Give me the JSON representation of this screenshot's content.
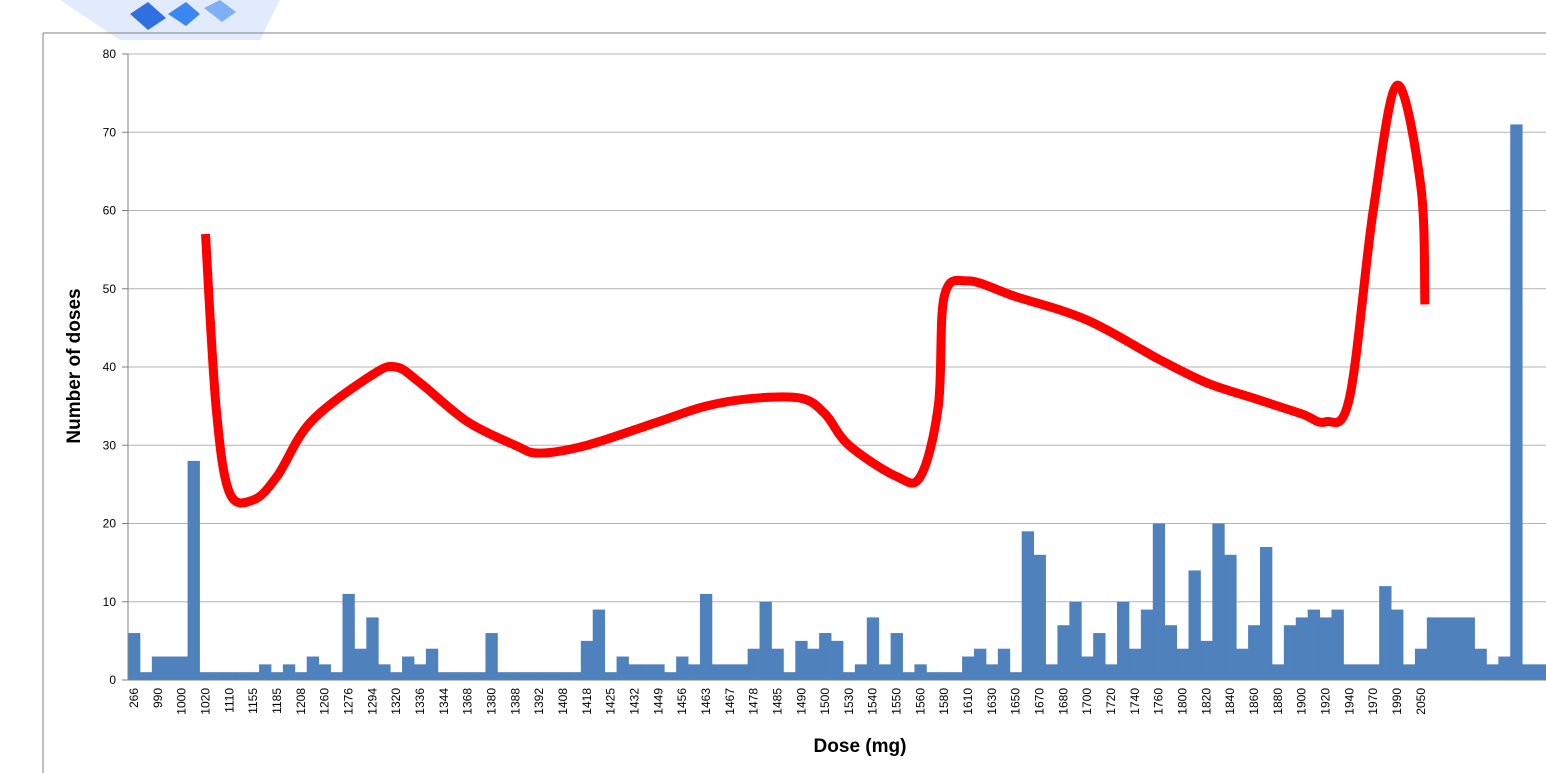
{
  "chart_data": {
    "type": "bar",
    "title": "",
    "xlabel": "Dose (mg)",
    "ylabel": "Number of doses",
    "ylim": [
      0,
      80
    ],
    "y_ticks": [
      0,
      10,
      20,
      30,
      40,
      50,
      60,
      70,
      80
    ],
    "grid": true,
    "legend": "none",
    "colors": {
      "bars": "#4F81BD",
      "trend": "#FF0000",
      "grid": "#B4B4B4",
      "watermark": "#2F6FE0"
    },
    "x_tick_labels": [
      "266",
      "990",
      "1000",
      "1020",
      "1110",
      "1155",
      "1185",
      "1208",
      "1260",
      "1276",
      "1294",
      "1320",
      "1336",
      "1344",
      "1368",
      "1380",
      "1388",
      "1392",
      "1408",
      "1418",
      "1425",
      "1432",
      "1449",
      "1456",
      "1463",
      "1467",
      "1478",
      "1485",
      "1490",
      "1500",
      "1530",
      "1540",
      "1550",
      "1560",
      "1580",
      "1610",
      "1630",
      "1650",
      "1670",
      "1680",
      "1700",
      "1720",
      "1740",
      "1760",
      "1800",
      "1820",
      "1840",
      "1860",
      "1880",
      "1900",
      "1920",
      "1940",
      "1970",
      "1990",
      "2050"
    ],
    "values": [
      6,
      1,
      3,
      3,
      3,
      28,
      1,
      1,
      1,
      1,
      1,
      2,
      1,
      2,
      1,
      3,
      2,
      1,
      11,
      4,
      8,
      2,
      1,
      3,
      2,
      4,
      1,
      1,
      1,
      1,
      6,
      1,
      1,
      1,
      1,
      1,
      1,
      1,
      5,
      9,
      1,
      3,
      2,
      2,
      2,
      1,
      3,
      2,
      11,
      2,
      2,
      2,
      4,
      10,
      4,
      1,
      5,
      4,
      6,
      5,
      1,
      2,
      8,
      2,
      6,
      1,
      2,
      1,
      1,
      1,
      3,
      4,
      2,
      4,
      1,
      19,
      16,
      2,
      7,
      10,
      3,
      6,
      2,
      10,
      4,
      9,
      20,
      7,
      4,
      14,
      5,
      20,
      16,
      4,
      7,
      17,
      2,
      7,
      8,
      9,
      8,
      9,
      2,
      2,
      2,
      12,
      9,
      2,
      4,
      8,
      8,
      8,
      8,
      4,
      2,
      3,
      71,
      2,
      2
    ],
    "trend_line": {
      "type": "smoothed",
      "points": [
        [
          1020,
          57
        ],
        [
          1060,
          35
        ],
        [
          1110,
          24
        ],
        [
          1155,
          23
        ],
        [
          1185,
          26
        ],
        [
          1230,
          33
        ],
        [
          1294,
          39
        ],
        [
          1320,
          40
        ],
        [
          1336,
          38
        ],
        [
          1368,
          33
        ],
        [
          1388,
          30
        ],
        [
          1392,
          29
        ],
        [
          1418,
          30
        ],
        [
          1449,
          33
        ],
        [
          1463,
          35
        ],
        [
          1478,
          36
        ],
        [
          1490,
          36
        ],
        [
          1500,
          34
        ],
        [
          1530,
          30
        ],
        [
          1550,
          26
        ],
        [
          1560,
          26
        ],
        [
          1575,
          35
        ],
        [
          1580,
          49
        ],
        [
          1610,
          51
        ],
        [
          1650,
          49
        ],
        [
          1700,
          46
        ],
        [
          1760,
          41
        ],
        [
          1820,
          38
        ],
        [
          1860,
          36
        ],
        [
          1900,
          34
        ],
        [
          1920,
          33
        ],
        [
          1940,
          36
        ],
        [
          1970,
          60
        ],
        [
          1990,
          76
        ],
        [
          2050,
          63
        ],
        [
          2060,
          48
        ]
      ]
    }
  }
}
